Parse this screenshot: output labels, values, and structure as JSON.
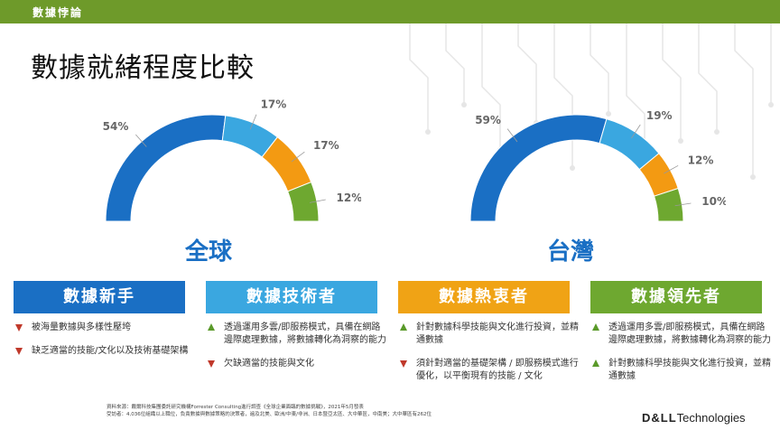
{
  "header": {
    "label": "數據悖論"
  },
  "title": "數據就緒程度比較",
  "chart_data": [
    {
      "type": "pie",
      "title": "全球",
      "categories": [
        "數據新手",
        "數據技術者",
        "數據熱衷者",
        "數據領先者"
      ],
      "values": [
        54,
        17,
        17,
        12
      ],
      "labels": [
        "54%",
        "17%",
        "17%",
        "12%"
      ],
      "colors": [
        "#1a6fc4",
        "#3aa7e0",
        "#f39a12",
        "#6ea830"
      ]
    },
    {
      "type": "pie",
      "title": "台灣",
      "categories": [
        "數據新手",
        "數據技術者",
        "數據熱衷者",
        "數據領先者"
      ],
      "values": [
        59,
        19,
        12,
        10
      ],
      "labels": [
        "59%",
        "19%",
        "12%",
        "10%"
      ],
      "colors": [
        "#1a6fc4",
        "#3aa7e0",
        "#f39a12",
        "#6ea830"
      ]
    }
  ],
  "categories": [
    {
      "name": "數據新手",
      "color": "#1a6fc4",
      "items": [
        {
          "dir": "down",
          "text": "被海量數據與多樣性壓垮"
        },
        {
          "dir": "down",
          "text": "缺乏適當的技能/文化以及技術基礎架構"
        }
      ]
    },
    {
      "name": "數據技術者",
      "color": "#3aa7e0",
      "items": [
        {
          "dir": "up",
          "text": "透過運用多雲/即服務模式，具備在網路邊際處理數據，將數據轉化為洞察的能力"
        },
        {
          "dir": "down",
          "text": "欠缺適當的技能與文化"
        }
      ]
    },
    {
      "name": "數據熱衷者",
      "color": "#f0a315",
      "items": [
        {
          "dir": "up",
          "text": "針對數據科學技能與文化進行投資，並精通數據"
        },
        {
          "dir": "down",
          "text": "須針對適當的基礎架構 / 即服務模式進行優化，以平衡現有的技能 / 文化"
        }
      ]
    },
    {
      "name": "數據領先者",
      "color": "#6ea830",
      "items": [
        {
          "dir": "up",
          "text": "透過運用多雲/即服務模式，具備在網路邊際處理數據，將數據轉化為洞察的能力"
        },
        {
          "dir": "up",
          "text": "針對數據科學技能與文化進行投資，並精通數據"
        }
      ]
    }
  ],
  "source": {
    "line1": "資料來源：戴爾科技集團委託研究機構Forrester  Consulting進行調查《全球企業面臨的數據挑戰》，2021年5月發表",
    "line2": "受訪者：4,036位組織以上職位，負責數據與數據策略的決策者，遍及北美、歐洲/中東/非洲、日本暨亞太區、大中華區，中南美；大中華區有262位"
  },
  "logo": {
    "brand": "D&LL",
    "suffix": "Technologies"
  }
}
